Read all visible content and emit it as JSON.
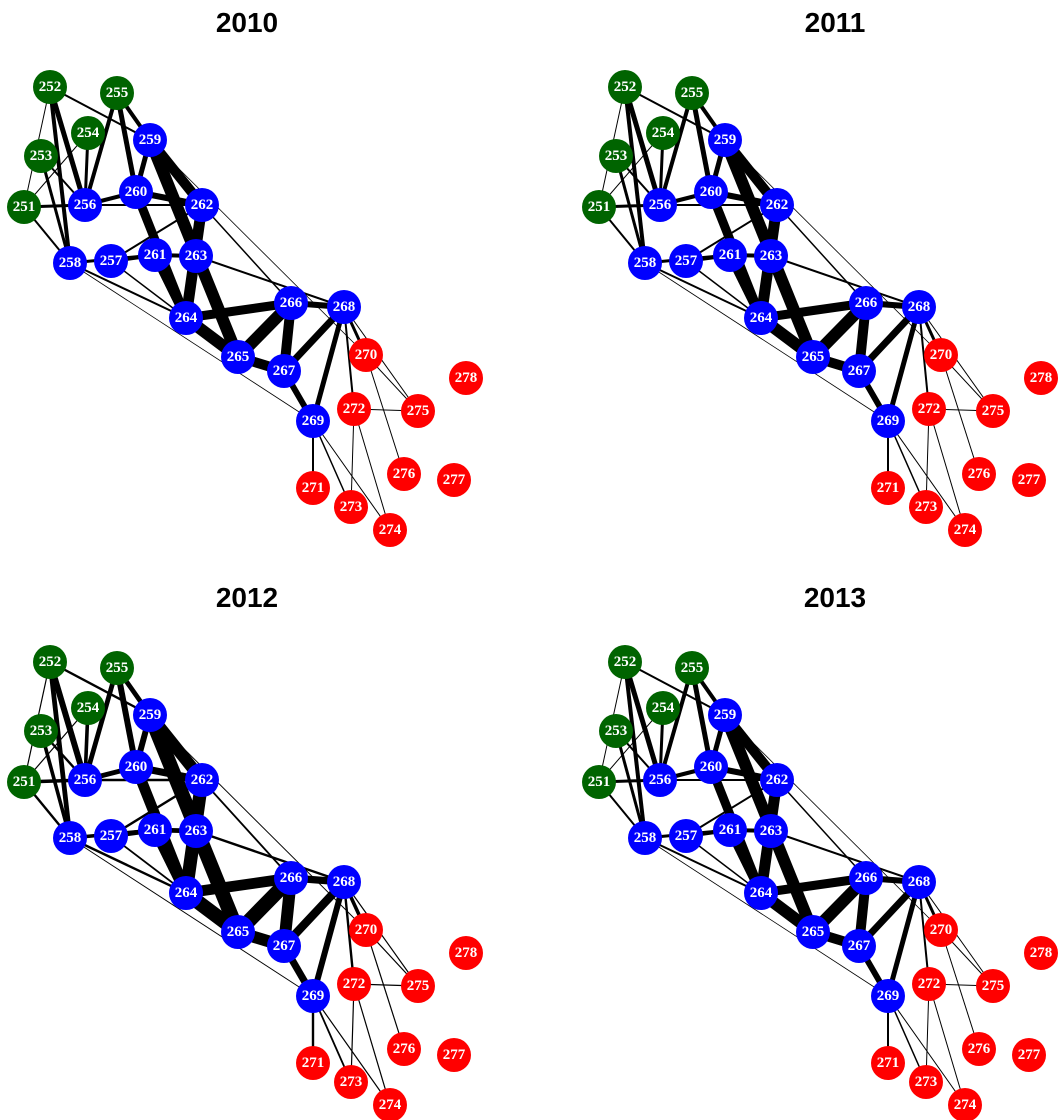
{
  "panels": [
    {
      "title": "2010",
      "nodes": [
        {
          "label": "251",
          "color": "#006400"
        },
        {
          "label": "252",
          "color": "#006400"
        },
        {
          "label": "253",
          "color": "#006400"
        },
        {
          "label": "254",
          "color": "#006400"
        },
        {
          "label": "255",
          "color": "#006400"
        },
        {
          "label": "256",
          "color": "#0000ff"
        },
        {
          "label": "257",
          "color": "#0000ff"
        },
        {
          "label": "258",
          "color": "#0000ff"
        },
        {
          "label": "259",
          "color": "#0000ff"
        },
        {
          "label": "260",
          "color": "#0000ff"
        },
        {
          "label": "261",
          "color": "#0000ff"
        },
        {
          "label": "262",
          "color": "#0000ff"
        },
        {
          "label": "263",
          "color": "#0000ff"
        },
        {
          "label": "264",
          "color": "#0000ff"
        },
        {
          "label": "265",
          "color": "#0000ff"
        },
        {
          "label": "266",
          "color": "#0000ff"
        },
        {
          "label": "267",
          "color": "#0000ff"
        },
        {
          "label": "268",
          "color": "#0000ff"
        },
        {
          "label": "269",
          "color": "#0000ff"
        },
        {
          "label": "270",
          "color": "#ff0000"
        },
        {
          "label": "271",
          "color": "#ff0000"
        },
        {
          "label": "272",
          "color": "#ff0000"
        },
        {
          "label": "273",
          "color": "#ff0000"
        },
        {
          "label": "274",
          "color": "#ff0000"
        },
        {
          "label": "275",
          "color": "#ff0000"
        },
        {
          "label": "276",
          "color": "#ff0000"
        },
        {
          "label": "277",
          "color": "#ff0000"
        },
        {
          "label": "278",
          "color": "#ff0000"
        }
      ]
    },
    {
      "title": "2011",
      "nodes": [
        {
          "label": "251",
          "color": "#006400"
        },
        {
          "label": "252",
          "color": "#006400"
        },
        {
          "label": "253",
          "color": "#006400"
        },
        {
          "label": "254",
          "color": "#006400"
        },
        {
          "label": "255",
          "color": "#006400"
        },
        {
          "label": "256",
          "color": "#0000ff"
        },
        {
          "label": "257",
          "color": "#0000ff"
        },
        {
          "label": "258",
          "color": "#0000ff"
        },
        {
          "label": "259",
          "color": "#0000ff"
        },
        {
          "label": "260",
          "color": "#0000ff"
        },
        {
          "label": "261",
          "color": "#0000ff"
        },
        {
          "label": "262",
          "color": "#0000ff"
        },
        {
          "label": "263",
          "color": "#0000ff"
        },
        {
          "label": "264",
          "color": "#0000ff"
        },
        {
          "label": "265",
          "color": "#0000ff"
        },
        {
          "label": "266",
          "color": "#0000ff"
        },
        {
          "label": "267",
          "color": "#0000ff"
        },
        {
          "label": "268",
          "color": "#0000ff"
        },
        {
          "label": "269",
          "color": "#0000ff"
        },
        {
          "label": "270",
          "color": "#ff0000"
        },
        {
          "label": "271",
          "color": "#ff0000"
        },
        {
          "label": "272",
          "color": "#ff0000"
        },
        {
          "label": "273",
          "color": "#ff0000"
        },
        {
          "label": "274",
          "color": "#ff0000"
        },
        {
          "label": "275",
          "color": "#ff0000"
        },
        {
          "label": "276",
          "color": "#ff0000"
        },
        {
          "label": "277",
          "color": "#ff0000"
        },
        {
          "label": "278",
          "color": "#ff0000"
        }
      ]
    },
    {
      "title": "2012",
      "nodes": [
        {
          "label": "251",
          "color": "#006400"
        },
        {
          "label": "252",
          "color": "#006400"
        },
        {
          "label": "253",
          "color": "#006400"
        },
        {
          "label": "254",
          "color": "#006400"
        },
        {
          "label": "255",
          "color": "#006400"
        },
        {
          "label": "256",
          "color": "#0000ff"
        },
        {
          "label": "257",
          "color": "#0000ff"
        },
        {
          "label": "258",
          "color": "#0000ff"
        },
        {
          "label": "259",
          "color": "#0000ff"
        },
        {
          "label": "260",
          "color": "#0000ff"
        },
        {
          "label": "261",
          "color": "#0000ff"
        },
        {
          "label": "262",
          "color": "#0000ff"
        },
        {
          "label": "263",
          "color": "#0000ff"
        },
        {
          "label": "264",
          "color": "#0000ff"
        },
        {
          "label": "265",
          "color": "#0000ff"
        },
        {
          "label": "266",
          "color": "#0000ff"
        },
        {
          "label": "267",
          "color": "#0000ff"
        },
        {
          "label": "268",
          "color": "#0000ff"
        },
        {
          "label": "269",
          "color": "#0000ff"
        },
        {
          "label": "270",
          "color": "#ff0000"
        },
        {
          "label": "271",
          "color": "#ff0000"
        },
        {
          "label": "272",
          "color": "#ff0000"
        },
        {
          "label": "273",
          "color": "#ff0000"
        },
        {
          "label": "274",
          "color": "#ff0000"
        },
        {
          "label": "275",
          "color": "#ff0000"
        },
        {
          "label": "276",
          "color": "#ff0000"
        },
        {
          "label": "277",
          "color": "#ff0000"
        },
        {
          "label": "278",
          "color": "#ff0000"
        }
      ]
    },
    {
      "title": "2013",
      "nodes": [
        {
          "label": "251",
          "color": "#006400"
        },
        {
          "label": "252",
          "color": "#006400"
        },
        {
          "label": "253",
          "color": "#006400"
        },
        {
          "label": "254",
          "color": "#006400"
        },
        {
          "label": "255",
          "color": "#006400"
        },
        {
          "label": "256",
          "color": "#0000ff"
        },
        {
          "label": "257",
          "color": "#0000ff"
        },
        {
          "label": "258",
          "color": "#0000ff"
        },
        {
          "label": "259",
          "color": "#0000ff"
        },
        {
          "label": "260",
          "color": "#0000ff"
        },
        {
          "label": "261",
          "color": "#0000ff"
        },
        {
          "label": "262",
          "color": "#0000ff"
        },
        {
          "label": "263",
          "color": "#0000ff"
        },
        {
          "label": "264",
          "color": "#0000ff"
        },
        {
          "label": "265",
          "color": "#0000ff"
        },
        {
          "label": "266",
          "color": "#0000ff"
        },
        {
          "label": "267",
          "color": "#0000ff"
        },
        {
          "label": "268",
          "color": "#0000ff"
        },
        {
          "label": "269",
          "color": "#0000ff"
        },
        {
          "label": "270",
          "color": "#ff0000"
        },
        {
          "label": "271",
          "color": "#ff0000"
        },
        {
          "label": "272",
          "color": "#ff0000"
        },
        {
          "label": "273",
          "color": "#ff0000"
        },
        {
          "label": "274",
          "color": "#ff0000"
        },
        {
          "label": "275",
          "color": "#ff0000"
        },
        {
          "label": "276",
          "color": "#ff0000"
        },
        {
          "label": "277",
          "color": "#ff0000"
        },
        {
          "label": "278",
          "color": "#ff0000"
        }
      ]
    }
  ]
}
